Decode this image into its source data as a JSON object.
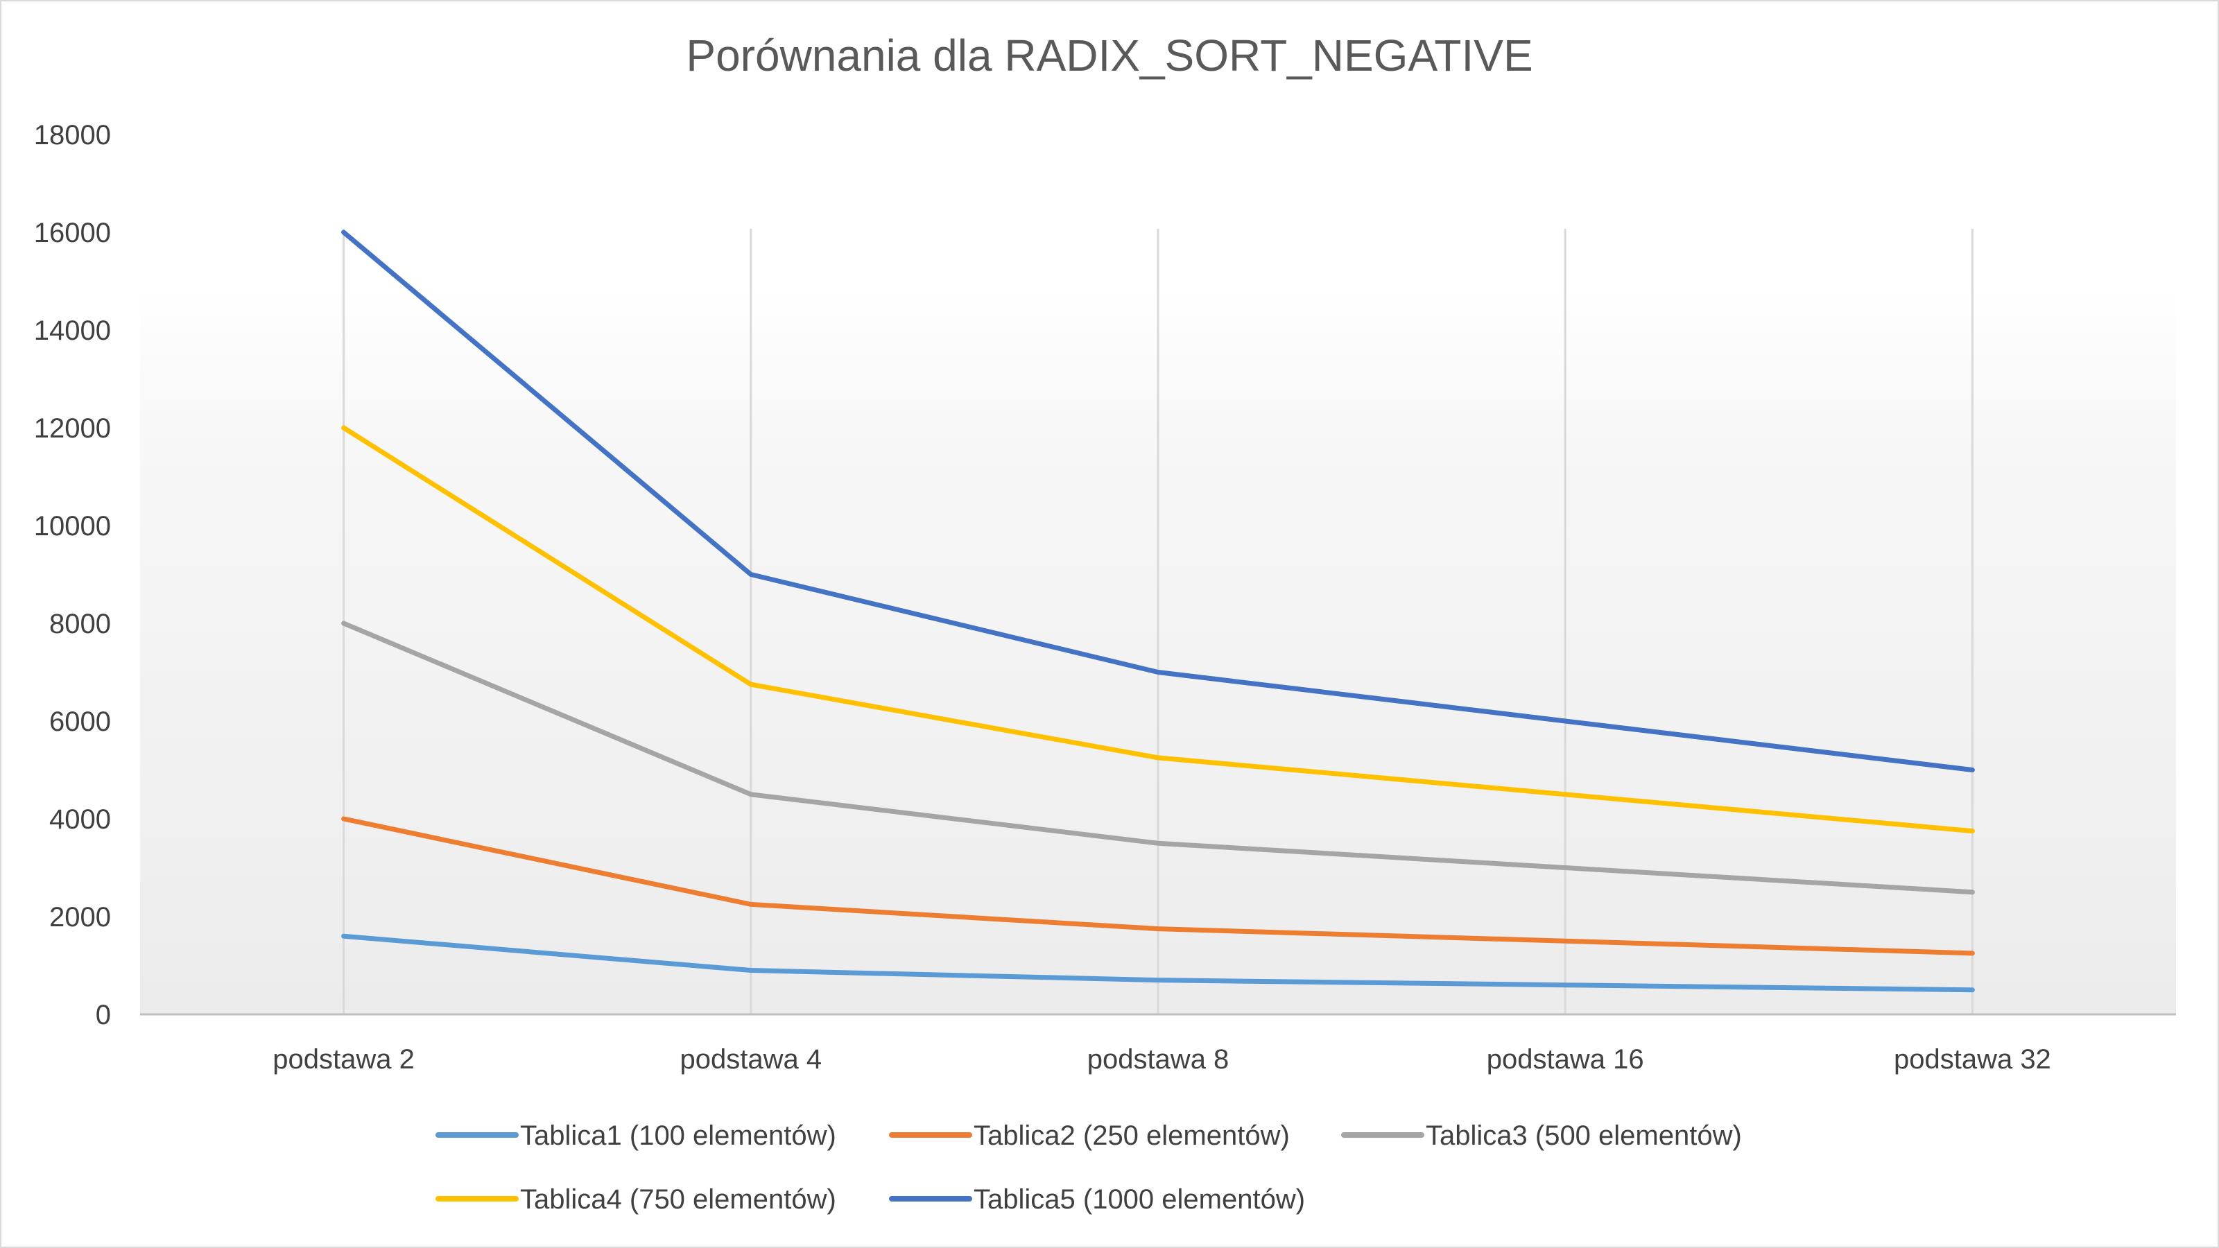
{
  "chart_data": {
    "type": "line",
    "title": "Porównania dla RADIX_SORT_NEGATIVE",
    "xlabel": "",
    "ylabel": "",
    "categories": [
      "podstawa 2",
      "podstawa 4",
      "podstawa 8",
      "podstawa 16",
      "podstawa 32"
    ],
    "ylim": [
      0,
      18000
    ],
    "yticks": [
      "0",
      "2000",
      "4000",
      "6000",
      "8000",
      "10000",
      "12000",
      "14000",
      "16000",
      "18000"
    ],
    "grid": "vertical",
    "legend_position": "bottom",
    "series": [
      {
        "name": "Tablica1 (100 elementów)",
        "color": "#5b9bd5",
        "values": [
          1600,
          900,
          700,
          600,
          500
        ]
      },
      {
        "name": "Tablica2 (250 elementów)",
        "color": "#ed7d31",
        "values": [
          4000,
          2250,
          1750,
          1500,
          1250
        ]
      },
      {
        "name": "Tablica3 (500 elementów)",
        "color": "#a5a5a5",
        "values": [
          8000,
          4500,
          3500,
          3000,
          2500
        ]
      },
      {
        "name": "Tablica4 (750 elementów)",
        "color": "#ffc000",
        "values": [
          12000,
          6750,
          5250,
          4500,
          3750
        ]
      },
      {
        "name": "Tablica5 (1000 elementów)",
        "color": "#4472c4",
        "values": [
          16000,
          9000,
          7000,
          6000,
          5000
        ]
      }
    ]
  }
}
